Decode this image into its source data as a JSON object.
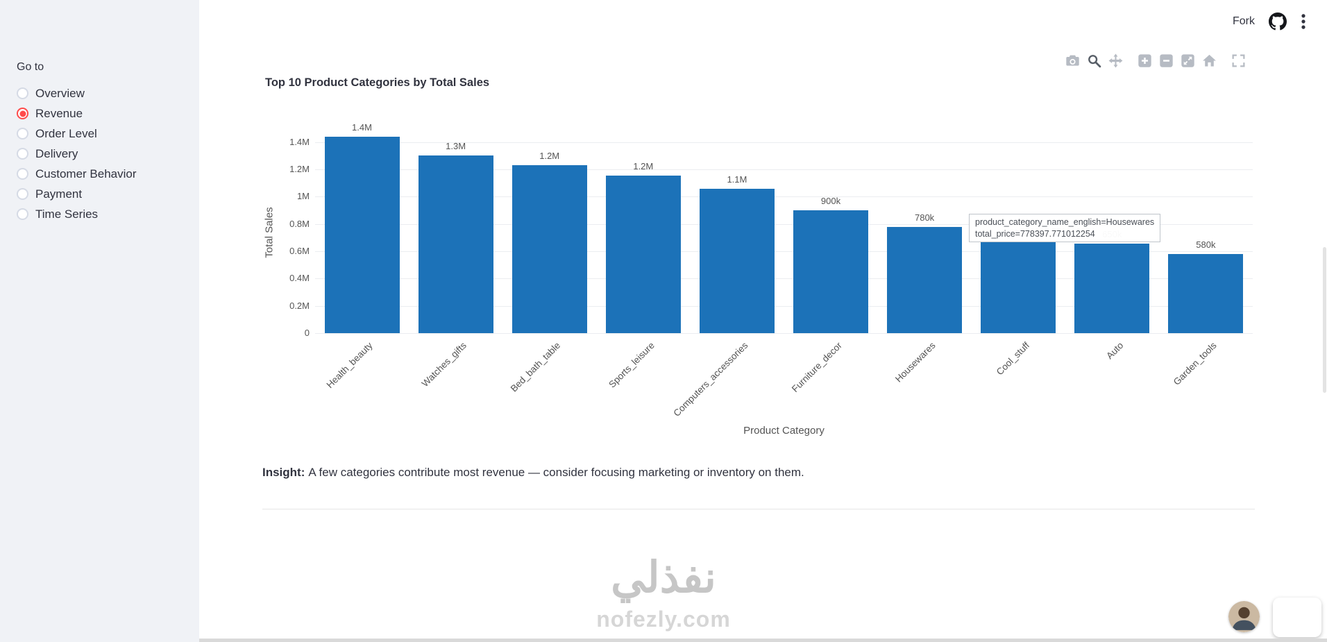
{
  "header": {
    "fork_label": "Fork"
  },
  "sidebar": {
    "label": "Go to",
    "items": [
      {
        "label": "Overview",
        "selected": false
      },
      {
        "label": "Revenue",
        "selected": true
      },
      {
        "label": "Order Level",
        "selected": false
      },
      {
        "label": "Delivery",
        "selected": false
      },
      {
        "label": "Customer Behavior",
        "selected": false
      },
      {
        "label": "Payment",
        "selected": false
      },
      {
        "label": "Time Series",
        "selected": false
      }
    ]
  },
  "modebar": {
    "buttons": [
      {
        "name": "camera",
        "active": false,
        "gap": false
      },
      {
        "name": "zoom",
        "active": true,
        "gap": false
      },
      {
        "name": "pan",
        "active": false,
        "gap": false
      },
      {
        "name": "zoom-in",
        "active": false,
        "gap": true
      },
      {
        "name": "zoom-out",
        "active": false,
        "gap": false
      },
      {
        "name": "autoscale",
        "active": false,
        "gap": false
      },
      {
        "name": "reset-axes",
        "active": false,
        "gap": false
      },
      {
        "name": "fullscreen",
        "active": false,
        "gap": true
      }
    ]
  },
  "chart_data": {
    "type": "bar",
    "title": "Top 10 Product Categories by Total Sales",
    "xlabel": "Product Category",
    "ylabel": "Total Sales",
    "categories": [
      "Health_beauty",
      "Watches_gifts",
      "Bed_bath_table",
      "Sports_leisure",
      "Computers_accessories",
      "Furniture_decor",
      "Housewares",
      "Cool_stuff",
      "Auto",
      "Garden_tools"
    ],
    "values": [
      1437000,
      1300000,
      1230000,
      1156000,
      1059000,
      899000,
      778397.77,
      665000,
      655000,
      580000
    ],
    "bar_labels": [
      "1.4M",
      "1.3M",
      "1.2M",
      "1.2M",
      "1.1M",
      "900k",
      "780k",
      "660k",
      "650k",
      "580k"
    ],
    "ytick_values": [
      0,
      200000,
      400000,
      600000,
      800000,
      1000000,
      1200000,
      1400000
    ],
    "ytick_labels": [
      "0",
      "0.2M",
      "0.4M",
      "0.6M",
      "0.8M",
      "1M",
      "1.2M",
      "1.4M"
    ],
    "ylim": [
      0,
      1460000
    ],
    "grid": true,
    "legend": false,
    "bar_color": "#1c72b8"
  },
  "tooltip": {
    "line1": "product_category_name_english=Housewares",
    "line2": "total_price=778397.771012254"
  },
  "insight": {
    "prefix": "Insight:",
    "text": "A few categories contribute most revenue — consider focusing marketing or inventory on them."
  },
  "watermark": {
    "arabic": "نفذلي",
    "latin": "nofezly.com"
  },
  "colors": {
    "accent_red": "#ff4b4b",
    "bar_blue": "#1c72b8",
    "chat_red": "#f94b43"
  }
}
